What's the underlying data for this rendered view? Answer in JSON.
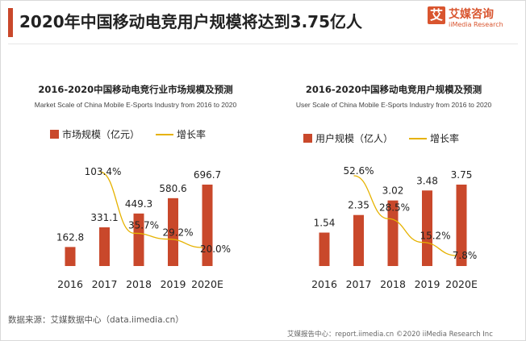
{
  "header": {
    "title": "2020年中国移动电竞用户规模将达到3.75亿人",
    "logo_mark": "艾",
    "logo_cn": "艾媒咨询",
    "logo_en": "iiMedia Research"
  },
  "colors": {
    "bar": "#c9482b",
    "line": "#e6b200",
    "accent": "#c9482b"
  },
  "chart_data": [
    {
      "type": "bar",
      "title": "2016-2020中国移动电竞行业市场规模及预测",
      "subtitle": "Market Scale of China Mobile E-Sports Industry from 2016 to 2020",
      "categories": [
        "2016",
        "2017",
        "2018",
        "2019",
        "2020E"
      ],
      "series": [
        {
          "name": "市场规模（亿元）",
          "type": "bar",
          "values": [
            162.8,
            331.1,
            449.3,
            580.6,
            696.7
          ],
          "labels": [
            "162.8",
            "331.1",
            "449.3",
            "580.6",
            "696.7"
          ]
        },
        {
          "name": "增长率",
          "type": "line",
          "values": [
            null,
            103.4,
            35.7,
            29.2,
            20.0
          ],
          "labels": [
            "",
            "103.4%",
            "35.7%",
            "29.2%",
            "20.0%"
          ]
        }
      ],
      "grid": false,
      "legend": "top"
    },
    {
      "type": "bar",
      "title": "2016-2020中国移动电竞用户规模及预测",
      "subtitle": "User Scale of China Mobile E-Sports Industry from 2016 to 2020",
      "categories": [
        "2016",
        "2017",
        "2018",
        "2019",
        "2020E"
      ],
      "series": [
        {
          "name": "用户规模（亿人）",
          "type": "bar",
          "values": [
            1.54,
            2.35,
            3.02,
            3.48,
            3.75
          ],
          "labels": [
            "1.54",
            "2.35",
            "3.02",
            "3.48",
            "3.75"
          ]
        },
        {
          "name": "增长率",
          "type": "line",
          "values": [
            null,
            52.6,
            28.5,
            15.2,
            7.8
          ],
          "labels": [
            "",
            "52.6%",
            "28.5%",
            "15.2%",
            "7.8%"
          ]
        }
      ],
      "grid": false,
      "legend": "top"
    }
  ],
  "source": "数据来源：艾媒数据中心（data.iimedia.cn）",
  "footer": "艾媒报告中心：report.iimedia.cn ©2020 iiMedia Research Inc"
}
